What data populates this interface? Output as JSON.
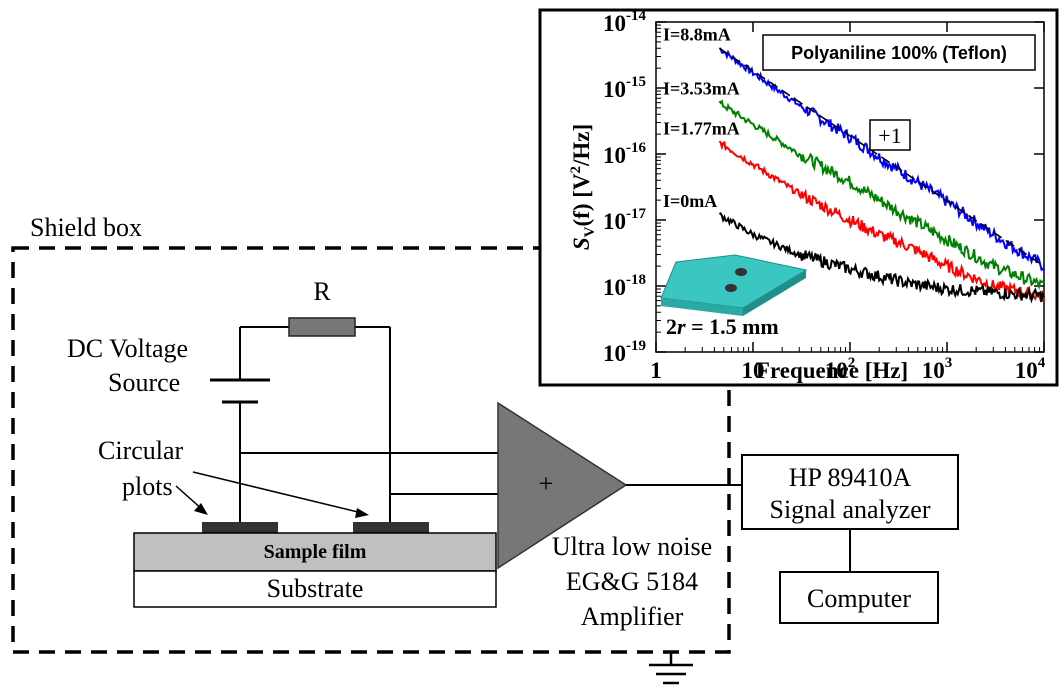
{
  "diagram": {
    "shield_box_label": "Shield box",
    "resistor_label": "R",
    "dc_source_label_line1": "DC Voltage",
    "dc_source_label_line2": "Source",
    "circular_plots_line1": "Circular",
    "circular_plots_line2": "plots",
    "sample_film_label": "Sample film",
    "substrate_label": "Substrate",
    "amplifier_symbol": "+",
    "amplifier_line1": "Ultra low noise",
    "amplifier_line2": "EG&G 5184",
    "amplifier_line3": "Amplifier",
    "analyzer_line1": "HP 89410A",
    "analyzer_line2": "Signal analyzer",
    "computer_label": "Computer"
  },
  "inset": {
    "legend_box": "Polyaniline 100% (Teflon)",
    "slope_label": "+1",
    "sample_size_label_prefix": "2",
    "sample_size_label_var": "r",
    "sample_size_label_suffix": " = 1.5 mm",
    "ylabel_S": "S",
    "ylabel_sub": "V",
    "ylabel_rest": "(f) [V",
    "ylabel_sup": "2",
    "ylabel_end": "/Hz]",
    "xlabel": "Frequence [Hz]"
  },
  "chart_data": {
    "type": "line",
    "title": "",
    "legend_text": "Polyaniline 100% (Teflon)",
    "xlabel": "Frequence [Hz]",
    "ylabel": "S_V(f) [V^2/Hz]",
    "xscale": "log",
    "yscale": "log",
    "xlim": [
      1,
      10000
    ],
    "ylim": [
      1e-19,
      1e-14
    ],
    "x_tick_labels": [
      "1",
      "10",
      "10^2",
      "10^3",
      "10^4"
    ],
    "y_tick_labels": [
      "10^-19",
      "10^-18",
      "10^-17",
      "10^-16",
      "10^-15",
      "10^-14"
    ],
    "series": [
      {
        "name": "I=8.8mA",
        "color": "#0000ff",
        "x": [
          4.5,
          10,
          30,
          100,
          300,
          1000,
          3000,
          10000
        ],
        "y": [
          4e-15,
          1.7e-15,
          5.5e-16,
          1.8e-16,
          6e-17,
          1.9e-17,
          6e-18,
          2e-18
        ]
      },
      {
        "name": "I=3.53mA",
        "color": "#008000",
        "x": [
          4.5,
          10,
          30,
          100,
          300,
          1000,
          3000,
          10000
        ],
        "y": [
          6e-16,
          2.8e-16,
          1e-16,
          3.8e-17,
          1.4e-17,
          5e-18,
          2e-18,
          1e-18
        ]
      },
      {
        "name": "I=1.77mA",
        "color": "#ff0000",
        "x": [
          4.5,
          10,
          30,
          100,
          200,
          400,
          1000,
          3000,
          10000
        ],
        "y": [
          1.5e-16,
          7e-17,
          2.5e-17,
          1e-17,
          6e-18,
          4e-18,
          2e-18,
          1e-18,
          7e-19
        ]
      },
      {
        "name": "I=0mA",
        "color": "#000000",
        "x": [
          4.5,
          10,
          30,
          100,
          400,
          1000,
          3000,
          10000
        ],
        "y": [
          1.2e-17,
          6e-18,
          3e-18,
          1.8e-18,
          1.1e-18,
          9e-19,
          8e-19,
          7e-19
        ]
      }
    ],
    "reference_line": {
      "label": "+1",
      "color": "#000000",
      "x": [
        4.5,
        10000
      ],
      "y": [
        4e-15,
        2e-18
      ]
    }
  }
}
